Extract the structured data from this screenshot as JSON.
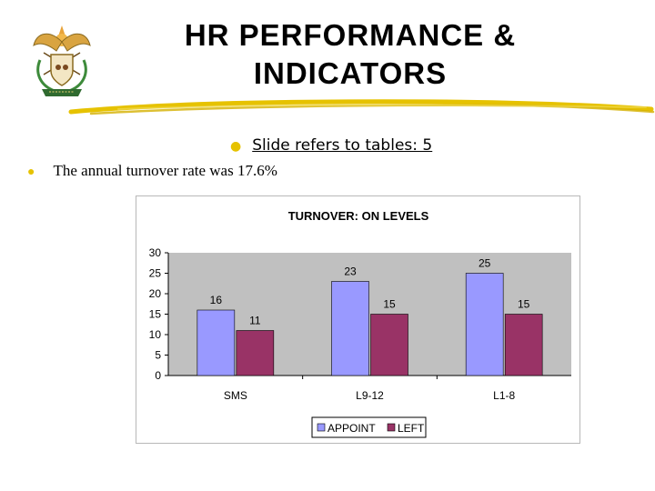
{
  "slide": {
    "title_line1": "HR PERFORMANCE &",
    "title_line2": "INDICATORS",
    "bullets": [
      "Slide refers to tables: 5",
      "The annual turnover rate was 17.6%"
    ]
  },
  "colors": {
    "appoint": "#9999ff",
    "left": "#993366",
    "plot_bg": "#c0c0c0",
    "bullet": "#e6c200",
    "underline": "#e6c200"
  },
  "chart_data": {
    "type": "bar",
    "title": "TURNOVER: ON LEVELS",
    "categories": [
      "SMS",
      "L9-12",
      "L1-8"
    ],
    "series": [
      {
        "name": "APPOINT",
        "values": [
          16,
          23,
          25
        ]
      },
      {
        "name": "LEFT",
        "values": [
          11,
          15,
          15
        ]
      }
    ],
    "ylim": [
      0,
      30
    ],
    "yticks": [
      0,
      5,
      10,
      15,
      20,
      25,
      30
    ],
    "xlabel": "",
    "ylabel": "",
    "grid": false,
    "legend": "bottom"
  }
}
